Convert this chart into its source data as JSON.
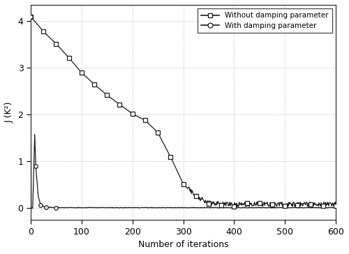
{
  "xlabel": "Number of iterations",
  "ylabel": "J (K²)",
  "xlim": [
    0,
    600
  ],
  "ylim": [
    -0.25,
    4.35
  ],
  "yticks": [
    0,
    1,
    2,
    3,
    4
  ],
  "xticks": [
    0,
    100,
    200,
    300,
    400,
    500,
    600
  ],
  "legend_labels": [
    "Without damping parameter",
    "With damping parameter"
  ],
  "line_color": "#1a1a1a",
  "background_color": "#ffffff",
  "grid_color": "#b0b0b0",
  "wo_key_x": [
    0,
    25,
    50,
    75,
    100,
    125,
    150,
    175,
    200,
    225,
    250,
    275,
    300,
    325,
    350,
    375,
    400,
    600
  ],
  "wo_key_y": [
    4.1,
    3.78,
    3.52,
    3.22,
    2.9,
    2.65,
    2.42,
    2.22,
    2.02,
    1.88,
    1.62,
    1.1,
    0.52,
    0.24,
    0.1,
    0.07,
    0.06,
    0.07
  ],
  "wd_key_x": [
    0,
    1,
    2,
    4,
    6,
    8,
    10,
    15,
    20,
    30,
    50,
    600
  ],
  "wd_key_y": [
    4.1,
    0.03,
    0.0,
    0.0,
    0.8,
    1.58,
    0.9,
    0.25,
    0.06,
    0.02,
    0.01,
    0.01
  ],
  "wo_marker_every": 25,
  "wd_marker_x": [
    0,
    10,
    20,
    30,
    50
  ],
  "wo_noise_seed": 7,
  "wd_noise_seed": 13
}
